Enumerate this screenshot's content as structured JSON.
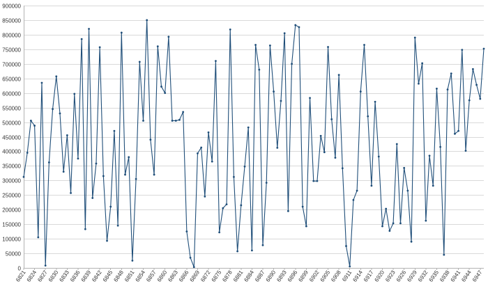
{
  "chart_data": {
    "type": "line",
    "title": "",
    "xlabel": "",
    "ylabel": "",
    "ylim": [
      0,
      900000
    ],
    "y_ticks": [
      0,
      50000,
      100000,
      150000,
      200000,
      250000,
      300000,
      350000,
      400000,
      450000,
      500000,
      550000,
      600000,
      650000,
      700000,
      750000,
      800000,
      850000,
      900000
    ],
    "x_tick_labels": [
      "6821",
      "6824",
      "6827",
      "6830",
      "6833",
      "6836",
      "6839",
      "6842",
      "6845",
      "6848",
      "6851",
      "6854",
      "6857",
      "6860",
      "6863",
      "6866",
      "6869",
      "6872",
      "6875",
      "6878",
      "6881",
      "6884",
      "6887",
      "6890",
      "6893",
      "6896",
      "6899",
      "6902",
      "6905",
      "6908",
      "6911",
      "6914",
      "6917",
      "6920",
      "6923",
      "6926",
      "6929",
      "6932",
      "6935",
      "6938",
      "6941",
      "6944",
      "6947"
    ],
    "grid": true,
    "legend": "none",
    "series": [
      {
        "color": "#1f4e79",
        "x_start": 6821,
        "values": [
          312000,
          395000,
          505000,
          488000,
          105000,
          635000,
          8000,
          362000,
          545000,
          657000,
          530000,
          330000,
          455000,
          257000,
          597000,
          375000,
          785000,
          133000,
          820000,
          240000,
          358000,
          757000,
          315000,
          93000,
          210000,
          470000,
          145000,
          807000,
          320000,
          380000,
          25000,
          305000,
          707000,
          505000,
          850000,
          440000,
          320000,
          760000,
          622000,
          600000,
          793000,
          505000,
          505000,
          508000,
          535000,
          125000,
          35000,
          3000,
          393000,
          413000,
          245000,
          465000,
          365000,
          710000,
          122000,
          205000,
          218000,
          818000,
          312000,
          57000,
          215000,
          348000,
          482000,
          60000,
          765000,
          680000,
          78000,
          292000,
          763000,
          605000,
          412000,
          573000,
          805000,
          195000,
          700000,
          833000,
          826000,
          210000,
          143000,
          583000,
          298000,
          298000,
          453000,
          397000,
          758000,
          510000,
          378000,
          662000,
          342000,
          75000,
          5000,
          233000,
          265000,
          605000,
          765000,
          520000,
          282000,
          570000,
          382000,
          143000,
          203000,
          127000,
          153000,
          425000,
          153000,
          343000,
          265000,
          90000,
          790000,
          632000,
          702000,
          162000,
          385000,
          282000,
          615000,
          415000,
          45000,
          612000,
          667000,
          460000,
          470000,
          748000,
          402000,
          575000,
          682000,
          628000,
          580000,
          752000
        ]
      }
    ]
  }
}
